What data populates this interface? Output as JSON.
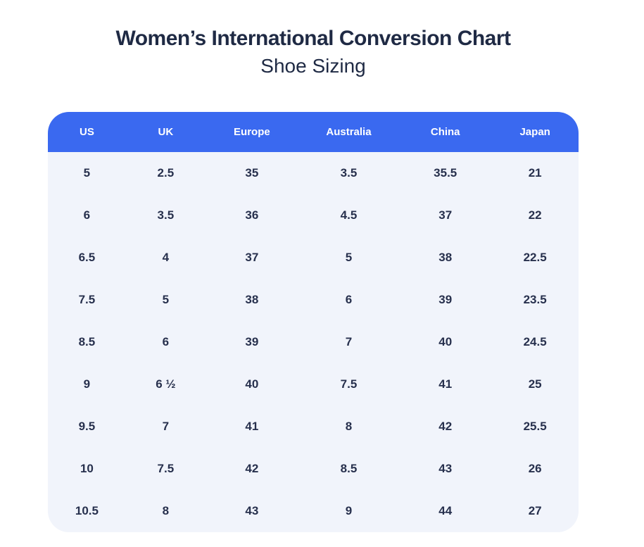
{
  "header": {
    "title": "Women’s International Conversion Chart",
    "subtitle": "Shoe Sizing"
  },
  "colors": {
    "header_bg": "#3a69f0",
    "header_text": "#ffffff",
    "body_bg": "#f1f4fb",
    "body_text": "#27304d",
    "title_text": "#1f2a44"
  },
  "chart_data": {
    "type": "table",
    "title": "Women’s International Conversion Chart",
    "subtitle": "Shoe Sizing",
    "columns": [
      "US",
      "UK",
      "Europe",
      "Australia",
      "China",
      "Japan"
    ],
    "rows": [
      [
        "5",
        "2.5",
        "35",
        "3.5",
        "35.5",
        "21"
      ],
      [
        "6",
        "3.5",
        "36",
        "4.5",
        "37",
        "22"
      ],
      [
        "6.5",
        "4",
        "37",
        "5",
        "38",
        "22.5"
      ],
      [
        "7.5",
        "5",
        "38",
        "6",
        "39",
        "23.5"
      ],
      [
        "8.5",
        "6",
        "39",
        "7",
        "40",
        "24.5"
      ],
      [
        "9",
        "6 ½",
        "40",
        "7.5",
        "41",
        "25"
      ],
      [
        "9.5",
        "7",
        "41",
        "8",
        "42",
        "25.5"
      ],
      [
        "10",
        "7.5",
        "42",
        "8.5",
        "43",
        "26"
      ],
      [
        "10.5",
        "8",
        "43",
        "9",
        "44",
        "27"
      ]
    ]
  }
}
